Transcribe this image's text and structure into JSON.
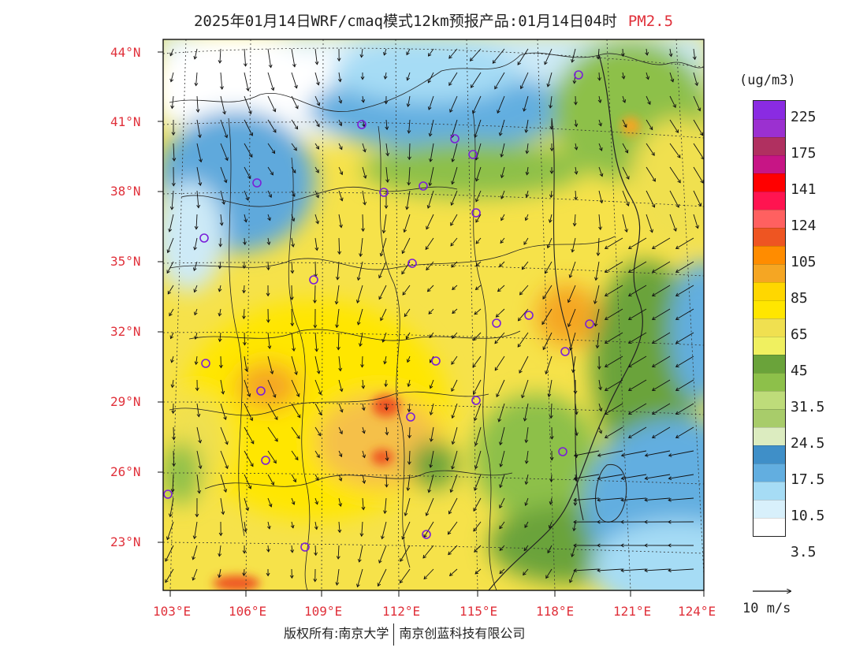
{
  "title": {
    "main": "2025年01月14日WRF/cmaq模式12km预报产品:01月14日04时",
    "product": "PM2.5"
  },
  "map": {
    "lat_labels": [
      "44°N",
      "41°N",
      "38°N",
      "35°N",
      "32°N",
      "29°N",
      "26°N",
      "23°N"
    ],
    "lon_labels": [
      "103°E",
      "106°E",
      "109°E",
      "112°E",
      "115°E",
      "118°E",
      "121°E",
      "124°E"
    ]
  },
  "legend": {
    "unit": "(ug/m3)",
    "colors": [
      "#8a2be2",
      "#9b30d0",
      "#b03060",
      "#c71585",
      "#ff0000",
      "#ff1450",
      "#ff6060",
      "#ee5522",
      "#ff8c00",
      "#f5a623",
      "#ffd700",
      "#ffe600",
      "#f0e050",
      "#f0f060",
      "#6aa33a",
      "#8dc04a",
      "#bedc7a",
      "#a8cc6a",
      "#dcecc0",
      "#3f8fc8",
      "#62aee0",
      "#a6dcf5",
      "#d8f0fb",
      "#ffffff"
    ],
    "labels": [
      "225",
      "175",
      "141",
      "124",
      "105",
      "85",
      "65",
      "45",
      "31.5",
      "24.5",
      "17.5",
      "10.5",
      "3.5"
    ]
  },
  "wind_reference": "10 m/s",
  "footer": {
    "left": "版权所有:南京大学",
    "right": "南京创蓝科技有限公司"
  }
}
